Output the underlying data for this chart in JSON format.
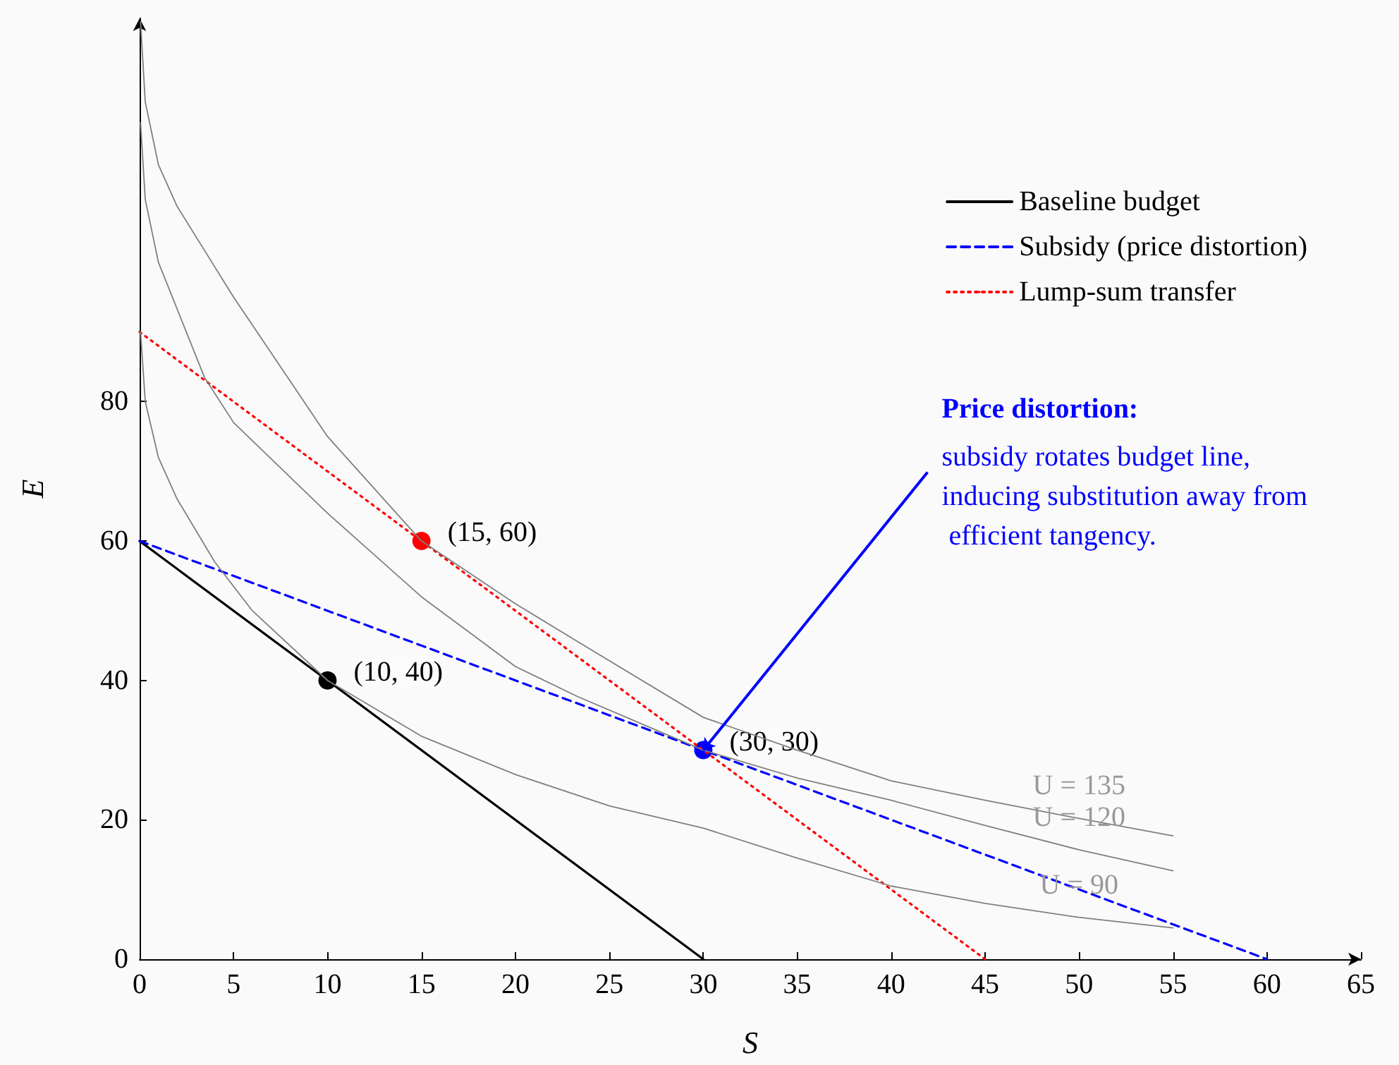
{
  "chart_data": {
    "type": "line",
    "xlabel": "S",
    "ylabel": "E",
    "xlim": [
      0,
      65
    ],
    "xticks": [
      0,
      5,
      10,
      15,
      20,
      25,
      30,
      35,
      40,
      45,
      50,
      55,
      60,
      65
    ],
    "ylim": [
      0,
      135
    ],
    "yticks": [
      0,
      20,
      40,
      60,
      80
    ],
    "grid": false,
    "legend": "top right",
    "marker": "none",
    "series": [
      {
        "name": "Baseline budget",
        "color": "#000000",
        "x": [
          0,
          30
        ],
        "values": [
          60,
          0
        ],
        "line_style": "solid"
      },
      {
        "name": "Subsidy (price distortion)",
        "color": "#0000ff",
        "x": [
          0,
          60
        ],
        "values": [
          60,
          0
        ],
        "line_style": "dashed"
      },
      {
        "name": "Lump-sum transfer",
        "color": "#ff0000",
        "x": [
          0,
          45
        ],
        "values": [
          90,
          0
        ],
        "line_style": "dotted"
      },
      {
        "name": "U = 90",
        "color": "#808080",
        "x": [
          0.05,
          0.3,
          1,
          2,
          4,
          6,
          10,
          15,
          20,
          25,
          30,
          35,
          40,
          45,
          50,
          55
        ],
        "values": [
          90,
          80,
          72,
          66,
          57,
          50,
          40,
          32,
          26.5,
          22,
          18.8,
          14.5,
          10.5,
          8,
          6,
          4.5
        ],
        "line_style": "solid"
      },
      {
        "name": "U = 120",
        "color": "#808080",
        "x": [
          0.05,
          0.3,
          1,
          3.45,
          5,
          10,
          15,
          20,
          23.3,
          30,
          35,
          40,
          45,
          50,
          55
        ],
        "values": [
          120,
          109,
          100,
          83.5,
          77,
          64,
          52,
          42,
          37.7,
          30,
          26,
          22.8,
          19.2,
          15.7,
          12.7
        ],
        "line_style": "solid"
      },
      {
        "name": "U = 135",
        "color": "#808080",
        "x": [
          0.05,
          0.3,
          1,
          2,
          5,
          10,
          15,
          20,
          23.3,
          30,
          35,
          40,
          45,
          50,
          55
        ],
        "values": [
          134.5,
          123,
          114,
          108,
          95,
          75,
          60,
          51,
          45.6,
          34.7,
          30,
          25.6,
          22.8,
          20.2,
          17.7
        ],
        "line_style": "solid"
      },
      {
        "type": "scatter",
        "color": "#000000",
        "x": [
          10
        ],
        "values": [
          40
        ],
        "value_labels": [
          "(10, 40)"
        ],
        "marker": "circle"
      },
      {
        "type": "scatter",
        "color": "#ff0000",
        "x": [
          15
        ],
        "values": [
          60
        ],
        "value_labels": [
          "(15, 60)"
        ],
        "marker": "circle"
      },
      {
        "type": "scatter",
        "color": "#0000ff",
        "x": [
          30
        ],
        "values": [
          30
        ],
        "value_labels": [
          "(30, 30)"
        ],
        "marker": "circle"
      }
    ],
    "annotations": [
      "Price distortion:",
      {
        "text": "subsidy rotates budget line, inducing substitution away from efficient tangency.",
        "x": 30,
        "y": 30
      }
    ]
  }
}
